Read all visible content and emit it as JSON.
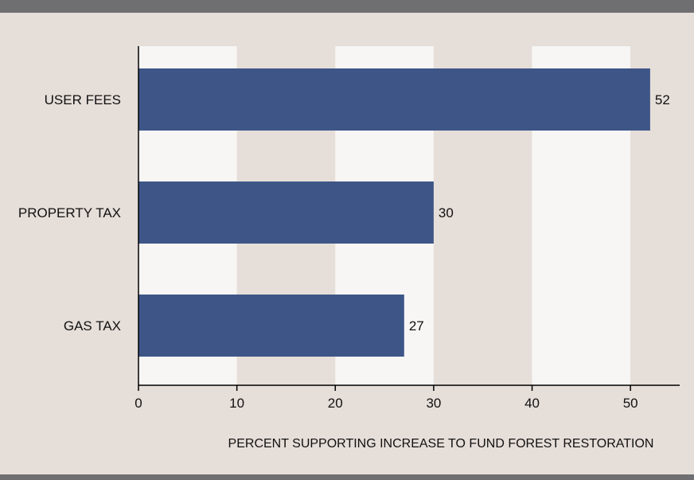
{
  "colors": {
    "background": "#e6ded9",
    "band_light": "#f7f6f5",
    "bar": "#3e5687",
    "rule": "#6f6f72"
  },
  "chart_data": {
    "type": "bar",
    "orientation": "horizontal",
    "categories": [
      "USER FEES",
      "PROPERTY TAX",
      "GAS TAX"
    ],
    "values": [
      52,
      30,
      27
    ],
    "title": "",
    "xlabel": "PERCENT SUPPORTING INCREASE TO FUND FOREST RESTORATION",
    "ylabel": "",
    "xlim": [
      0,
      55
    ],
    "xticks": [
      0,
      10,
      20,
      30,
      40,
      50
    ],
    "grid": "alternating vertical bands",
    "legend": "none",
    "data_labels": true
  }
}
